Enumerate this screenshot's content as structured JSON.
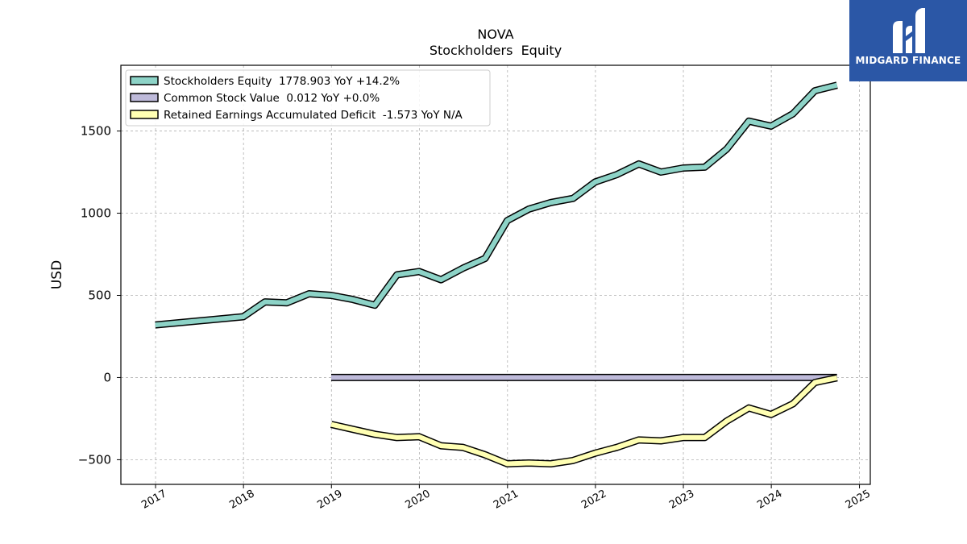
{
  "brand": {
    "name": "MIDGARD FINANCE",
    "bg_color": "#2b57a6"
  },
  "chart_data": {
    "type": "line",
    "title": "NOVA",
    "subtitle": "Stockholders  Equity",
    "xlabel": "",
    "ylabel": "USD",
    "x_ticks": [
      "2017",
      "2018",
      "2019",
      "2020",
      "2021",
      "2022",
      "2023",
      "2024",
      "2025"
    ],
    "xlim": [
      "2016-08-10",
      "2025-02-15"
    ],
    "ylim": [
      -650,
      1900
    ],
    "y_ticks": [
      -500,
      0,
      500,
      1000,
      1500
    ],
    "y_tick_labels": [
      "−500",
      "0",
      "500",
      "1000",
      "1500"
    ],
    "grid": true,
    "legend_position": "top-left",
    "series": [
      {
        "name": "Stockholders Equity",
        "legend_label": "Stockholders Equity  1778.903 YoY +14.2%",
        "color": "#8dd3c7",
        "x": [
          "2016-12-31",
          "2017-12-31",
          "2018-03-31",
          "2018-06-30",
          "2018-09-30",
          "2018-12-31",
          "2019-03-31",
          "2019-06-30",
          "2019-09-30",
          "2019-12-31",
          "2020-03-31",
          "2020-06-30",
          "2020-09-30",
          "2020-12-31",
          "2021-03-31",
          "2021-06-30",
          "2021-09-30",
          "2021-12-31",
          "2022-03-31",
          "2022-06-30",
          "2022-09-30",
          "2022-12-31",
          "2023-03-31",
          "2023-06-30",
          "2023-09-30",
          "2023-12-31",
          "2024-03-31",
          "2024-06-30",
          "2024-09-30"
        ],
        "values": [
          320,
          370,
          460,
          455,
          510,
          500,
          475,
          440,
          625,
          645,
          595,
          665,
          725,
          955,
          1025,
          1065,
          1090,
          1190,
          1235,
          1300,
          1250,
          1275,
          1280,
          1390,
          1560,
          1530,
          1605,
          1745,
          1779
        ]
      },
      {
        "name": "Common Stock Value",
        "legend_label": "Common Stock Value  0.012 YoY +0.0%",
        "color": "#bebada",
        "x": [
          "2018-12-31",
          "2024-09-30"
        ],
        "values": [
          0.012,
          0.012
        ]
      },
      {
        "name": "Retained Earnings Accumulated Deficit",
        "legend_label": "Retained Earnings Accumulated Deficit  -1.573 YoY N/A",
        "color": "#ffffb3",
        "x": [
          "2018-12-31",
          "2019-03-31",
          "2019-06-30",
          "2019-09-30",
          "2019-12-31",
          "2020-03-31",
          "2020-06-30",
          "2020-09-30",
          "2020-12-31",
          "2021-03-31",
          "2021-06-30",
          "2021-09-30",
          "2021-12-31",
          "2022-03-31",
          "2022-06-30",
          "2022-09-30",
          "2022-12-31",
          "2023-03-31",
          "2023-06-30",
          "2023-09-30",
          "2023-12-31",
          "2024-03-31",
          "2024-06-30",
          "2024-09-30"
        ],
        "values": [
          -285,
          -315,
          -345,
          -365,
          -360,
          -415,
          -425,
          -470,
          -525,
          -520,
          -525,
          -505,
          -460,
          -425,
          -380,
          -385,
          -365,
          -365,
          -265,
          -185,
          -225,
          -160,
          -30,
          -1.573
        ]
      }
    ]
  }
}
